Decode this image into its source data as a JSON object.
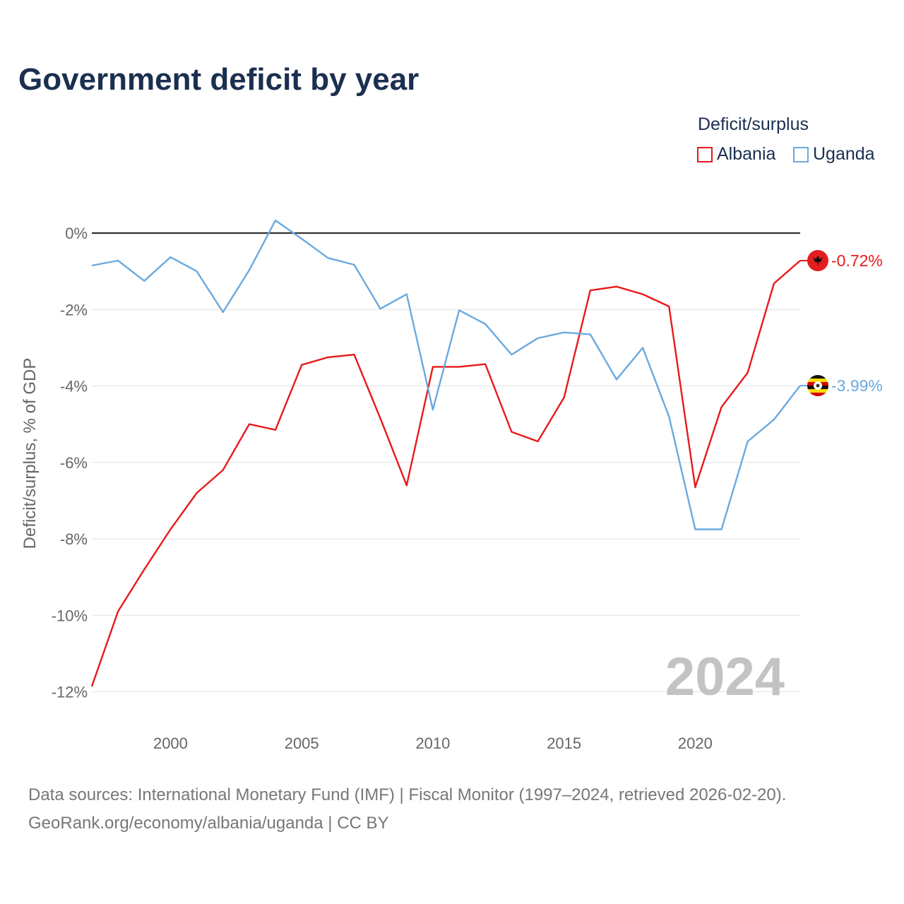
{
  "chart_data": {
    "type": "line",
    "title": "Government deficit by year",
    "legend_title": "Deficit/surplus",
    "ylabel": "Deficit/surplus, % of GDP",
    "xlabel": "",
    "ylim": [
      -12.6,
      0.6
    ],
    "xlim": [
      1997,
      2024
    ],
    "y_ticks": [
      0,
      -2,
      -4,
      -6,
      -8,
      -10,
      -12
    ],
    "y_tick_labels": [
      "0%",
      "-2%",
      "-4%",
      "-6%",
      "-8%",
      "-10%",
      "-12%"
    ],
    "x_ticks": [
      2000,
      2005,
      2010,
      2015,
      2020
    ],
    "x_tick_labels": [
      "2000",
      "2005",
      "2010",
      "2015",
      "2020"
    ],
    "current_year": "2024",
    "x": [
      1997,
      1998,
      1999,
      2000,
      2001,
      2002,
      2003,
      2004,
      2005,
      2006,
      2007,
      2008,
      2009,
      2010,
      2011,
      2012,
      2013,
      2014,
      2015,
      2016,
      2017,
      2018,
      2019,
      2020,
      2021,
      2022,
      2023,
      2024
    ],
    "series": [
      {
        "name": "Albania",
        "color": "#e8191c",
        "end_label": "-0.72%",
        "flag": "albania-flag",
        "values": [
          -11.86,
          -9.9,
          -8.8,
          -7.75,
          -6.8,
          -6.2,
          -5.0,
          -5.15,
          -3.45,
          -3.25,
          -3.18,
          -4.85,
          -6.6,
          -3.5,
          -3.5,
          -3.43,
          -5.2,
          -5.45,
          -4.3,
          -1.5,
          -1.4,
          -1.6,
          -1.92,
          -6.65,
          -4.55,
          -3.65,
          -1.32,
          -0.72
        ]
      },
      {
        "name": "Uganda",
        "color": "#6aa9e0",
        "end_label": "-3.99%",
        "flag": "uganda-flag",
        "values": [
          -0.85,
          -0.72,
          -1.25,
          -0.63,
          -1.0,
          -2.07,
          -0.97,
          0.33,
          -0.15,
          -0.65,
          -0.83,
          -1.98,
          -1.6,
          -4.62,
          -2.02,
          -2.38,
          -3.18,
          -2.75,
          -2.6,
          -2.65,
          -3.83,
          -3.0,
          -4.8,
          -7.75,
          -7.75,
          -5.45,
          -4.88,
          -3.99
        ]
      }
    ]
  },
  "source": {
    "line1": "Data sources: International Monetary Fund (IMF) | Fiscal Monitor (1997–2024, retrieved 2026-02-20).",
    "line2": "GeoRank.org/economy/albania/uganda | CC BY"
  },
  "colors": {
    "title": "#1b2f50",
    "grid": "#e6e6e6",
    "zero_line": "#333333",
    "tick_text": "#666666",
    "watermark": "#c3c3c3"
  }
}
